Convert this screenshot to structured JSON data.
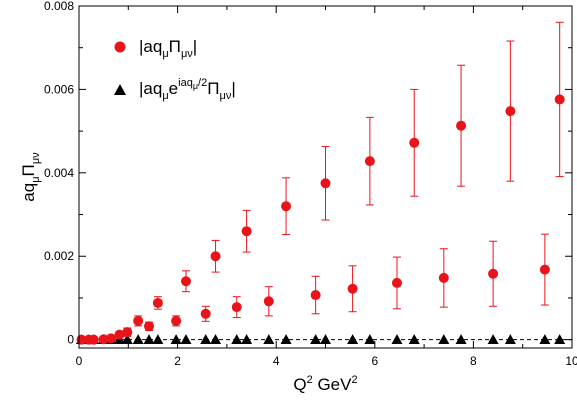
{
  "chart_data": {
    "type": "scatter",
    "xlabel": {
      "base": "Q",
      "sup": "2",
      "unit": " GeV",
      "unit_sup": "2"
    },
    "ylabel": {
      "a": "aq",
      "sub": "μ",
      "pi": "Π",
      "pi_sub": "μν"
    },
    "xlim": [
      0,
      10
    ],
    "ylim": [
      -0.0002,
      0.008
    ],
    "xticks": [
      0,
      2,
      4,
      6,
      8,
      10
    ],
    "yticks": [
      0,
      0.002,
      0.004,
      0.006,
      0.008
    ],
    "xtick_labels": [
      "0",
      "2",
      "4",
      "6",
      "8",
      "10"
    ],
    "ytick_labels": [
      "0",
      "0.002",
      "0.004",
      "0.006",
      "0.008"
    ],
    "legend_position": "top-left",
    "series": [
      {
        "name": "|aq_μ Π_μν|",
        "legend": {
          "pre": "|aq",
          "sub1": "μ",
          "mid": "Π",
          "sub2": "μν",
          "post": "|"
        },
        "marker": "circle",
        "color": "#e8141a",
        "points": [
          {
            "x": 0.05,
            "y": 0.0,
            "err": 3e-05
          },
          {
            "x": 0.2,
            "y": 0.0,
            "err": 3e-05
          },
          {
            "x": 0.3,
            "y": 0.0,
            "err": 3e-05
          },
          {
            "x": 0.5,
            "y": 1e-05,
            "err": 4e-05
          },
          {
            "x": 0.65,
            "y": 3e-05,
            "err": 5e-05
          },
          {
            "x": 0.82,
            "y": 0.00012,
            "err": 8e-05
          },
          {
            "x": 0.98,
            "y": 0.00018,
            "err": 0.0001
          },
          {
            "x": 1.2,
            "y": 0.00045,
            "err": 0.00012
          },
          {
            "x": 1.42,
            "y": 0.00032,
            "err": 0.0001
          },
          {
            "x": 1.6,
            "y": 0.00088,
            "err": 0.00015
          },
          {
            "x": 1.97,
            "y": 0.00045,
            "err": 0.00012
          },
          {
            "x": 2.17,
            "y": 0.0014,
            "err": 0.00025
          },
          {
            "x": 2.57,
            "y": 0.00062,
            "err": 0.00018
          },
          {
            "x": 2.77,
            "y": 0.002,
            "err": 0.00038
          },
          {
            "x": 3.2,
            "y": 0.00078,
            "err": 0.00025
          },
          {
            "x": 3.4,
            "y": 0.0026,
            "err": 0.0005
          },
          {
            "x": 3.85,
            "y": 0.00092,
            "err": 0.00035
          },
          {
            "x": 4.2,
            "y": 0.0032,
            "err": 0.00068
          },
          {
            "x": 4.8,
            "y": 0.00107,
            "err": 0.00045
          },
          {
            "x": 5.0,
            "y": 0.00375,
            "err": 0.00088
          },
          {
            "x": 5.55,
            "y": 0.00122,
            "err": 0.00055
          },
          {
            "x": 5.9,
            "y": 0.00428,
            "err": 0.00105
          },
          {
            "x": 6.45,
            "y": 0.00136,
            "err": 0.00062
          },
          {
            "x": 6.8,
            "y": 0.00472,
            "err": 0.00128
          },
          {
            "x": 7.4,
            "y": 0.00148,
            "err": 0.0007
          },
          {
            "x": 7.75,
            "y": 0.00513,
            "err": 0.00145
          },
          {
            "x": 8.4,
            "y": 0.00158,
            "err": 0.00078
          },
          {
            "x": 8.75,
            "y": 0.00548,
            "err": 0.00168
          },
          {
            "x": 9.45,
            "y": 0.00168,
            "err": 0.00085
          },
          {
            "x": 9.75,
            "y": 0.00576,
            "err": 0.00185
          }
        ]
      },
      {
        "name": "|aq_μ e^{iaq_μ/2} Π_μν|",
        "legend": {
          "pre": "|aq",
          "sub1": "μ",
          "e": "e",
          "sup": "iaq",
          "sup_sub": "μ",
          "sup_post": "/2",
          "mid": "Π",
          "sub2": "μν",
          "post": "|"
        },
        "marker": "triangle",
        "color": "#000000",
        "points": [
          {
            "x": 0.05,
            "y": 0
          },
          {
            "x": 0.2,
            "y": 0
          },
          {
            "x": 0.3,
            "y": 0
          },
          {
            "x": 0.5,
            "y": 0
          },
          {
            "x": 0.65,
            "y": 0
          },
          {
            "x": 0.82,
            "y": 0
          },
          {
            "x": 0.98,
            "y": 0
          },
          {
            "x": 1.2,
            "y": 0
          },
          {
            "x": 1.42,
            "y": 0
          },
          {
            "x": 1.6,
            "y": 0
          },
          {
            "x": 1.97,
            "y": 0
          },
          {
            "x": 2.17,
            "y": 0
          },
          {
            "x": 2.57,
            "y": 0
          },
          {
            "x": 2.77,
            "y": 0
          },
          {
            "x": 3.2,
            "y": 0
          },
          {
            "x": 3.4,
            "y": 0
          },
          {
            "x": 3.85,
            "y": 0
          },
          {
            "x": 4.2,
            "y": 0
          },
          {
            "x": 4.8,
            "y": 0
          },
          {
            "x": 5.0,
            "y": 0
          },
          {
            "x": 5.55,
            "y": 0
          },
          {
            "x": 5.9,
            "y": 0
          },
          {
            "x": 6.45,
            "y": 0
          },
          {
            "x": 6.8,
            "y": 0
          },
          {
            "x": 7.4,
            "y": 0
          },
          {
            "x": 7.75,
            "y": 0
          },
          {
            "x": 8.4,
            "y": 0
          },
          {
            "x": 8.75,
            "y": 0
          },
          {
            "x": 9.45,
            "y": 0
          },
          {
            "x": 9.75,
            "y": 0
          }
        ]
      }
    ]
  }
}
